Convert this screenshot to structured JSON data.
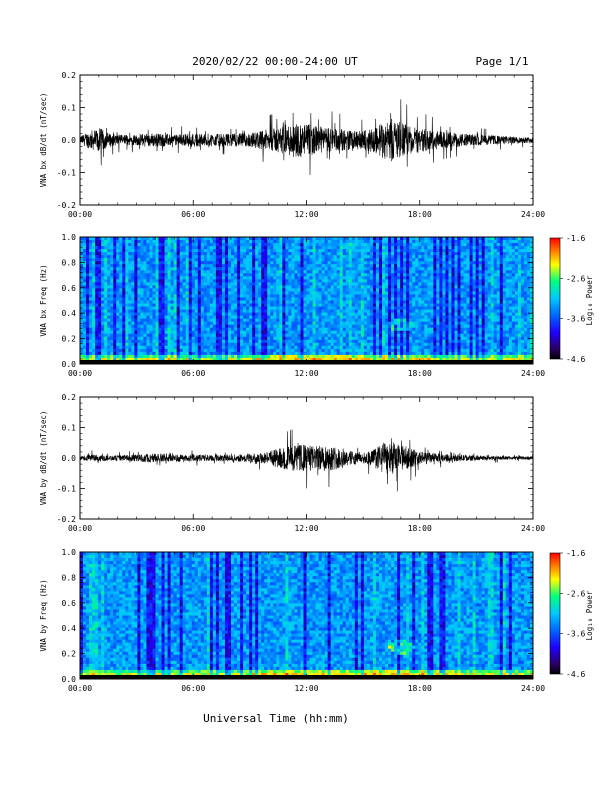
{
  "header": {
    "title": "2020/02/22  00:00-24:00 UT",
    "page": "Page 1/1"
  },
  "xlabel": "Universal Time (hh:mm)",
  "x_ticks": [
    "00:00",
    "06:00",
    "12:00",
    "18:00",
    "24:00"
  ],
  "colors": {
    "trace": "#000000",
    "colormap": [
      "#000000",
      "#2a0060",
      "#2000ff",
      "#0066ff",
      "#00c8ff",
      "#00ff80",
      "#ffff00",
      "#ff7f00",
      "#ff0000"
    ]
  },
  "chart_data": [
    {
      "type": "line",
      "ylabel": "VNA bx dB/dt (nT/sec)",
      "ylim": [
        -0.2,
        0.2
      ],
      "y_ticks": [
        "0.2",
        "0.1",
        "0.0",
        "-0.1",
        "-0.2"
      ],
      "x_range_hours": [
        0,
        24
      ],
      "envelope": {
        "hours": [
          0,
          0.5,
          1,
          1.5,
          2,
          3,
          4,
          5,
          6,
          7,
          8,
          9,
          9.5,
          10,
          10.5,
          11,
          11.5,
          12,
          12.5,
          13,
          13.5,
          14,
          14.5,
          15,
          15.5,
          16,
          16.5,
          17,
          17.5,
          18,
          19,
          20,
          21,
          22,
          23,
          24
        ],
        "amplitude": [
          0.02,
          0.05,
          0.07,
          0.04,
          0.03,
          0.03,
          0.04,
          0.03,
          0.04,
          0.035,
          0.035,
          0.04,
          0.05,
          0.06,
          0.07,
          0.09,
          0.1,
          0.09,
          0.08,
          0.07,
          0.07,
          0.06,
          0.05,
          0.05,
          0.07,
          0.1,
          0.12,
          0.1,
          0.08,
          0.07,
          0.05,
          0.04,
          0.03,
          0.025,
          0.02,
          0.015
        ]
      }
    },
    {
      "type": "heatmap",
      "ylabel": "VNA bx Freq (Hz)",
      "ylim": [
        0.0,
        1.0
      ],
      "y_ticks": [
        "1.0",
        "0.8",
        "0.6",
        "0.4",
        "0.2",
        "0.0"
      ],
      "colorbar_label": "Log₁₀ Power",
      "colorbar_ticks": [
        "-1.6",
        "-2.6",
        "-3.6",
        "-4.6"
      ],
      "colorbar_range": [
        -4.6,
        -1.6
      ],
      "feature": {
        "hour": 17.0,
        "freq": 0.3
      }
    },
    {
      "type": "line",
      "ylabel": "VNA by dB/dt (nT/sec)",
      "ylim": [
        -0.2,
        0.2
      ],
      "y_ticks": [
        "0.2",
        "0.1",
        "0.0",
        "-0.1",
        "-0.2"
      ],
      "x_range_hours": [
        0,
        24
      ],
      "envelope": {
        "hours": [
          0,
          0.5,
          1,
          1.5,
          2,
          3,
          4,
          5,
          6,
          7,
          8,
          9,
          9.5,
          10,
          10.5,
          11,
          11.5,
          12,
          12.5,
          13,
          13.5,
          14,
          14.5,
          15,
          15.5,
          16,
          16.5,
          17,
          17.5,
          18,
          19,
          20,
          21,
          22,
          23,
          24
        ],
        "amplitude": [
          0.01,
          0.02,
          0.02,
          0.015,
          0.015,
          0.02,
          0.03,
          0.02,
          0.02,
          0.02,
          0.02,
          0.025,
          0.03,
          0.04,
          0.06,
          0.07,
          0.08,
          0.08,
          0.07,
          0.08,
          0.07,
          0.05,
          0.04,
          0.03,
          0.05,
          0.09,
          0.1,
          0.08,
          0.06,
          0.04,
          0.025,
          0.02,
          0.015,
          0.012,
          0.01,
          0.01
        ]
      }
    },
    {
      "type": "heatmap",
      "ylabel": "VNA by Freq (Hz)",
      "ylim": [
        0.0,
        1.0
      ],
      "y_ticks": [
        "1.0",
        "0.8",
        "0.6",
        "0.4",
        "0.2",
        "0.0"
      ],
      "colorbar_label": "Log₁₀ Power",
      "colorbar_ticks": [
        "-1.6",
        "-2.6",
        "-3.6",
        "-4.6"
      ],
      "colorbar_range": [
        -4.6,
        -1.6
      ],
      "feature": {
        "hour": 17.0,
        "freq": 0.25
      }
    }
  ]
}
